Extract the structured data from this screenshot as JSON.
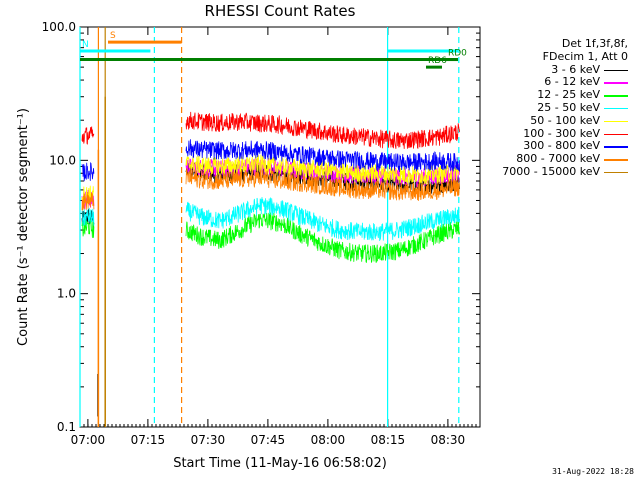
{
  "chart_data": {
    "type": "line",
    "title": "RHESSI Count Rates",
    "xlabel": "Start Time (11-May-16 06:58:02)",
    "ylabel": "Count Rate (s⁻¹ detector segment⁻¹)",
    "yscale": "log",
    "ylim": [
      0.1,
      100.0
    ],
    "xlim_minutes": [
      0,
      100
    ],
    "x_ticks": [
      {
        "label": "07:00",
        "minute": 1.97
      },
      {
        "label": "07:15",
        "minute": 16.97
      },
      {
        "label": "07:30",
        "minute": 31.97
      },
      {
        "label": "07:45",
        "minute": 46.97
      },
      {
        "label": "08:00",
        "minute": 61.97
      },
      {
        "label": "08:15",
        "minute": 76.97
      },
      {
        "label": "08:30",
        "minute": 91.97
      }
    ],
    "y_ticks": [
      {
        "label": "0.1",
        "value": 0.1
      },
      {
        "label": "1.0",
        "value": 1.0
      },
      {
        "label": "10.0",
        "value": 10.0
      },
      {
        "label": "100.0",
        "value": 100.0
      }
    ],
    "data_gap_minutes": [
      6.5,
      26.5
    ],
    "sample_minutes": [
      0.5,
      2,
      3.5,
      5,
      26.5,
      30,
      35,
      40,
      45,
      50,
      55,
      60,
      65,
      70,
      75,
      80,
      85,
      90,
      95
    ],
    "series": [
      {
        "name": "3 - 6 keV",
        "color": "#000000",
        "values": [
          3.5,
          3.8,
          3.6,
          null,
          8.5,
          8.2,
          7.8,
          8.0,
          8.4,
          7.9,
          7.6,
          7.4,
          7.0,
          6.8,
          6.8,
          6.6,
          6.5,
          6.6,
          7.0
        ]
      },
      {
        "name": "6 - 12 keV",
        "color": "#ff00ff",
        "values": [
          5.0,
          5.2,
          5.0,
          null,
          9.0,
          8.8,
          8.6,
          8.8,
          9.0,
          8.6,
          8.4,
          8.2,
          7.9,
          7.7,
          7.7,
          7.5,
          7.4,
          7.6,
          8.0
        ]
      },
      {
        "name": "12 - 25 keV",
        "color": "#00ff00",
        "values": [
          3.0,
          3.2,
          3.0,
          null,
          3.0,
          2.7,
          2.5,
          3.0,
          3.6,
          3.4,
          2.8,
          2.4,
          2.1,
          2.0,
          2.0,
          2.1,
          2.4,
          2.8,
          3.1
        ]
      },
      {
        "name": "25 - 50 keV",
        "color": "#00ffff",
        "values": [
          3.6,
          3.8,
          3.7,
          null,
          4.2,
          3.8,
          3.5,
          4.0,
          4.6,
          4.4,
          3.8,
          3.3,
          3.0,
          2.9,
          2.9,
          3.0,
          3.3,
          3.6,
          3.9
        ]
      },
      {
        "name": "50 - 100 keV",
        "color": "#ffff00",
        "values": [
          5.5,
          5.6,
          5.5,
          null,
          9.5,
          9.2,
          9.0,
          9.2,
          9.4,
          9.0,
          8.7,
          8.5,
          8.2,
          8.0,
          8.0,
          7.8,
          7.7,
          7.9,
          8.2
        ]
      },
      {
        "name": "100 - 300 keV",
        "color": "#ff0000",
        "values": [
          15.0,
          15.5,
          15.2,
          null,
          20.0,
          19.5,
          19.0,
          19.5,
          19.0,
          18.5,
          17.5,
          16.5,
          15.5,
          15.0,
          14.5,
          14.0,
          14.5,
          15.0,
          16.5
        ]
      },
      {
        "name": "300 - 800 keV",
        "color": "#0000ff",
        "values": [
          8.0,
          8.3,
          8.1,
          null,
          12.5,
          12.0,
          11.8,
          11.9,
          12.0,
          11.5,
          11.0,
          10.6,
          10.2,
          10.0,
          9.8,
          9.6,
          9.7,
          9.9,
          9.6
        ]
      },
      {
        "name": "800 - 7000 keV",
        "color": "#ff8000",
        "values": [
          4.8,
          5.0,
          4.9,
          null,
          7.5,
          7.2,
          7.0,
          7.2,
          7.4,
          7.0,
          6.8,
          6.5,
          6.2,
          6.0,
          6.0,
          5.8,
          5.8,
          6.0,
          6.3
        ]
      },
      {
        "name": "7000 - 15000 keV",
        "color": "#c08000",
        "values": [
          null,
          null,
          null,
          null,
          null,
          null,
          null,
          null,
          null,
          null,
          null,
          null,
          null,
          null,
          null,
          null,
          null,
          null,
          null
        ]
      }
    ],
    "vertical_markers": [
      {
        "kind": "solid",
        "color": "#00ffff",
        "minute": 0
      },
      {
        "kind": "solid",
        "color": "#ff8000",
        "minute": 4.6
      },
      {
        "kind": "solid",
        "color": "#c08000",
        "minute": 6.3
      },
      {
        "kind": "dashed",
        "color": "#00ffff",
        "minute": 18.6
      },
      {
        "kind": "dashed",
        "color": "#ff8000",
        "minute": 25.4
      },
      {
        "kind": "solid",
        "color": "#00ffff",
        "minute": 76.9
      },
      {
        "kind": "dashed",
        "color": "#00ffff",
        "minute": 94.7
      }
    ],
    "annotation_bars": [
      {
        "label": "S",
        "color": "#ff8000",
        "from_minute": 7.0,
        "to_minute": 25.4,
        "level": 77
      },
      {
        "label": "N",
        "color": "#00ffff",
        "from_minute": 0,
        "to_minute": 17.6,
        "level": 66
      },
      {
        "label": "",
        "color": "#00ffff",
        "from_minute": 77.0,
        "to_minute": 94.5,
        "level": 66
      },
      {
        "label": "",
        "color": "#007f00",
        "from_minute": 0,
        "to_minute": 94.5,
        "level": 57
      },
      {
        "label": "RD0",
        "color": "#007f00",
        "from_minute": 91.5,
        "to_minute": 94.5,
        "level": 57
      },
      {
        "label": "RD6",
        "color": "#007f00",
        "from_minute": 86.5,
        "to_minute": 90.5,
        "level": 50
      }
    ],
    "spikes": [
      {
        "color": "#000000",
        "minute": 4.5,
        "low": 0.12,
        "high": 0.25
      },
      {
        "color": "#ff8000",
        "minute": 4.6,
        "low": 0.1,
        "high": 12.0
      },
      {
        "color": "#c08000",
        "minute": 6.3,
        "low": 0.1,
        "high": 30.0
      }
    ]
  },
  "legend": {
    "header_1": "Det 1f,3f,8f,",
    "header_2": "FDecim 1, Att 0"
  },
  "timestamp": "31-Aug-2022 18:28"
}
